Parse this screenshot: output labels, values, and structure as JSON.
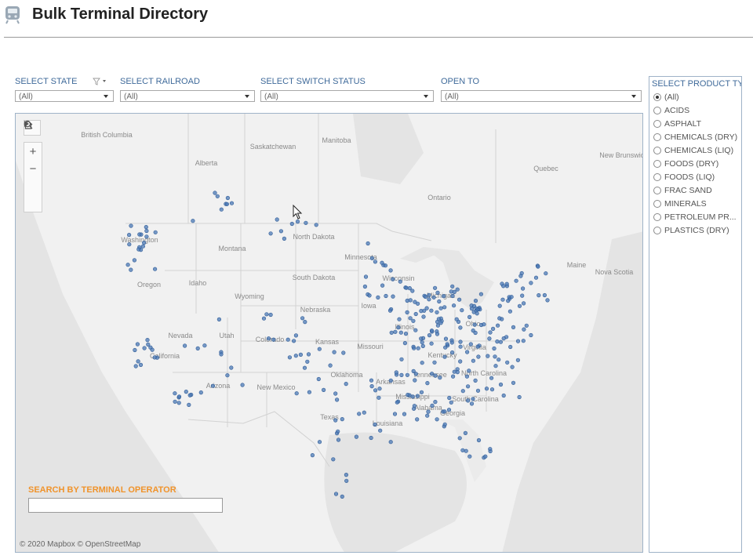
{
  "header": {
    "title": "Bulk Terminal Directory",
    "logo_icon": "train-icon"
  },
  "filters": [
    {
      "label": "SELECT STATE",
      "value": "(All)",
      "has_funnel": true
    },
    {
      "label": "SELECT RAILROAD",
      "value": "(All)"
    },
    {
      "label": "SELECT SWITCH STATUS",
      "value": "(All)"
    },
    {
      "label": "OPEN TO",
      "value": "(All)"
    }
  ],
  "product_filter": {
    "label": "SELECT PRODUCT TY...",
    "selected_index": 0,
    "options": [
      "(All)",
      "ACIDS",
      "ASPHALT",
      "CHEMICALS (DRY)",
      "CHEMICALS (LIQ)",
      "FOODS (DRY)",
      "FOODS (LIQ)",
      "FRAC SAND",
      "MINERALS",
      "PETROLEUM PR...",
      "PLASTICS (DRY)"
    ]
  },
  "map": {
    "attribution": "© 2020 Mapbox © OpenStreetMap",
    "marker_color": "#4a78b5",
    "tools": [
      "search-icon",
      "zoom-in-icon",
      "zoom-out-icon",
      "home-icon",
      "play-icon"
    ],
    "labels": [
      "British Columbia",
      "Alberta",
      "Saskatchewan",
      "Manitoba",
      "Ontario",
      "Quebec",
      "New Brunswick",
      "Nova Scotia",
      "Maine",
      "Washington",
      "Oregon",
      "Idaho",
      "Montana",
      "Wyoming",
      "North Dakota",
      "South Dakota",
      "Nebraska",
      "Minnesota",
      "Wisconsin",
      "Michigan",
      "Iowa",
      "Illinois",
      "Ohio",
      "Virginia",
      "Kentucky",
      "Tennessee",
      "North Carolina",
      "South Carolina",
      "Georgia",
      "Alabama",
      "Mississippi",
      "Louisiana",
      "Arkansas",
      "Missouri",
      "Kansas",
      "Colorado",
      "Utah",
      "Nevada",
      "California",
      "Arizona",
      "New Mexico",
      "Oklahoma",
      "Texas"
    ]
  },
  "search": {
    "label": "SEARCH BY TERMINAL OPERATOR",
    "value": ""
  }
}
